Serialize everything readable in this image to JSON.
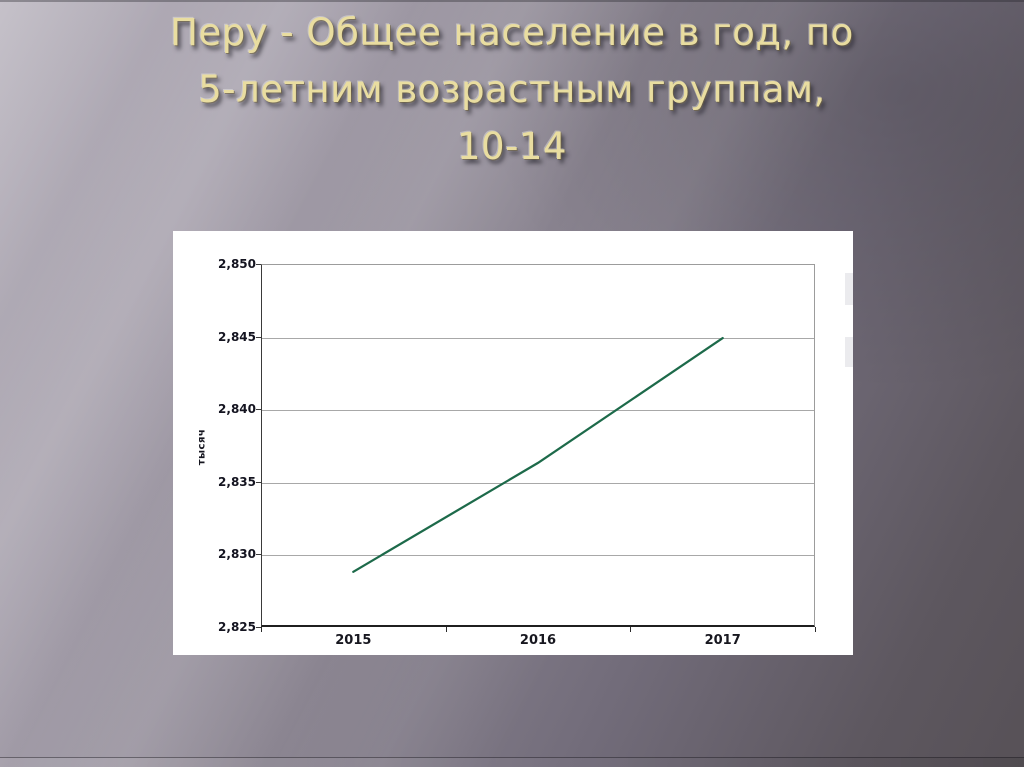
{
  "slide": {
    "title_lines": [
      "Перу - Общее население в год, по",
      "5-летним возрастным группам,",
      "10-14"
    ]
  },
  "chart_data": {
    "type": "line",
    "title": "Перу - Общее население в год, по 5-летним возрастным группам, 10-14",
    "categories": [
      "2015",
      "2016",
      "2017"
    ],
    "values": [
      2828.8,
      2836.3,
      2844.9
    ],
    "ylabel": "тысяч",
    "ylim": [
      2825,
      2850
    ],
    "ytick_step": 5,
    "ytick_labels": [
      "2,825",
      "2,830",
      "2,835",
      "2,840",
      "2,845",
      "2,850"
    ],
    "grid": true,
    "legend": "none",
    "line_color": "#1d6a4a"
  },
  "colors": {
    "title_gold": "#e9dda0",
    "line_green": "#1d6a4a",
    "background_dark": "#575157",
    "background_light": "#b7b2bc"
  }
}
